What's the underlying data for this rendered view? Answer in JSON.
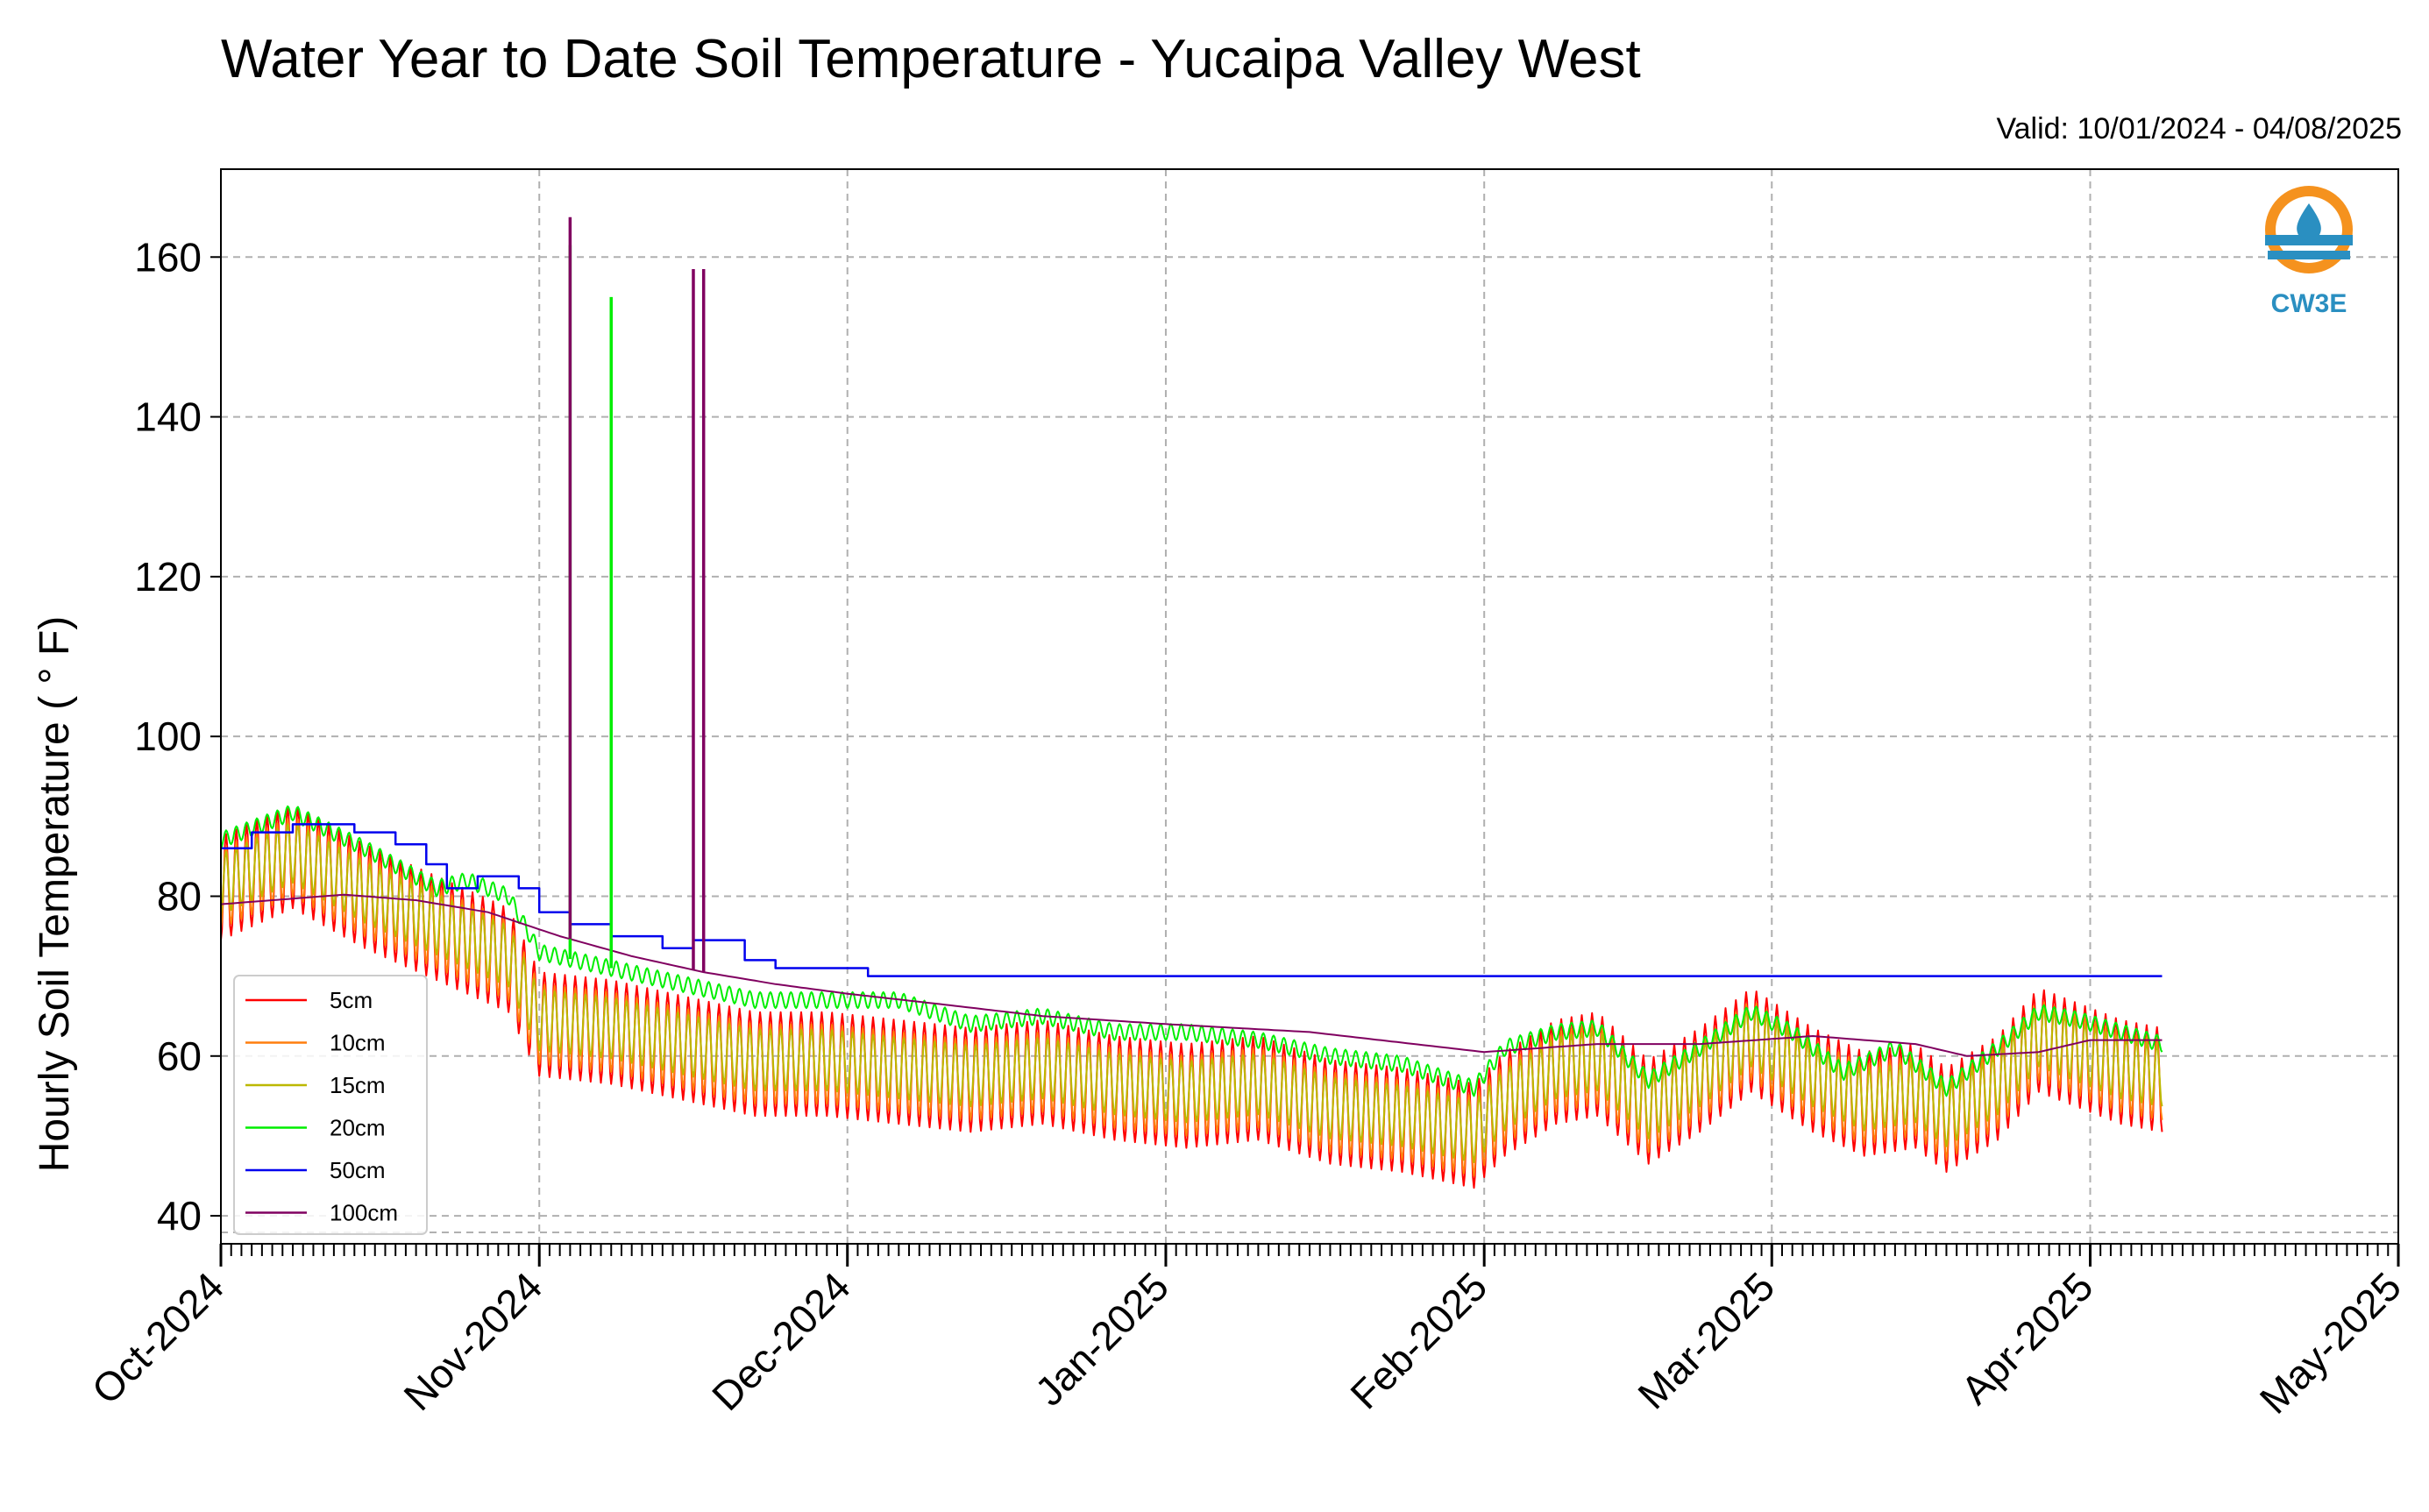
{
  "chart_data": {
    "type": "line",
    "title": "Water Year to Date Soil Temperature - Yucaipa Valley West",
    "subtitle": "Valid: 10/01/2024 - 04/08/2025",
    "ylabel": "Hourly Soil Temperature ( ° F)",
    "xlabel": "",
    "x_range": [
      "2024-10-01",
      "2025-05-01"
    ],
    "ylim": [
      36.5,
      171
    ],
    "y_ticks": [
      40,
      60,
      80,
      100,
      120,
      140,
      160
    ],
    "x_ticks": [
      {
        "date": "2024-10-01",
        "label": "Oct-2024"
      },
      {
        "date": "2024-11-01",
        "label": "Nov-2024"
      },
      {
        "date": "2024-12-01",
        "label": "Dec-2024"
      },
      {
        "date": "2025-01-01",
        "label": "Jan-2025"
      },
      {
        "date": "2025-02-01",
        "label": "Feb-2025"
      },
      {
        "date": "2025-03-01",
        "label": "Mar-2025"
      },
      {
        "date": "2025-04-01",
        "label": "Apr-2025"
      },
      {
        "date": "2025-05-01",
        "label": "May-2025"
      }
    ],
    "grid": true,
    "legend_position": "bottom-left",
    "data_end": "2025-04-08",
    "series": [
      {
        "name": "5cm",
        "color": "#ff0000",
        "diurnal_amplitude": 6.5,
        "daily_means": [
          [
            "2024-10-01",
            81
          ],
          [
            "2024-10-08",
            85
          ],
          [
            "2024-10-15",
            80
          ],
          [
            "2024-10-22",
            76
          ],
          [
            "2024-10-29",
            72
          ],
          [
            "2024-11-01",
            64
          ],
          [
            "2024-11-08",
            63
          ],
          [
            "2024-11-15",
            61
          ],
          [
            "2024-11-22",
            59
          ],
          [
            "2024-11-29",
            59
          ],
          [
            "2024-12-06",
            58
          ],
          [
            "2024-12-13",
            57
          ],
          [
            "2024-12-20",
            58
          ],
          [
            "2024-12-27",
            56
          ],
          [
            "2025-01-03",
            55
          ],
          [
            "2025-01-10",
            56
          ],
          [
            "2025-01-17",
            53
          ],
          [
            "2025-01-24",
            52
          ],
          [
            "2025-01-31",
            50
          ],
          [
            "2025-02-03",
            54
          ],
          [
            "2025-02-08",
            58
          ],
          [
            "2025-02-12",
            59
          ],
          [
            "2025-02-17",
            53
          ],
          [
            "2025-02-22",
            57
          ],
          [
            "2025-02-27",
            62
          ],
          [
            "2025-03-05",
            57
          ],
          [
            "2025-03-10",
            54
          ],
          [
            "2025-03-15",
            55
          ],
          [
            "2025-03-18",
            52
          ],
          [
            "2025-03-23",
            56
          ],
          [
            "2025-03-27",
            62
          ],
          [
            "2025-03-31",
            60
          ],
          [
            "2025-04-04",
            58
          ],
          [
            "2025-04-08",
            57
          ]
        ]
      },
      {
        "name": "10cm",
        "color": "#ff7f0e",
        "diurnal_amplitude": 5.0,
        "daily_means": [
          [
            "2024-10-01",
            81
          ],
          [
            "2024-10-08",
            85
          ],
          [
            "2024-10-15",
            80
          ],
          [
            "2024-10-22",
            76
          ],
          [
            "2024-10-29",
            72
          ],
          [
            "2024-11-01",
            64
          ],
          [
            "2024-11-08",
            63
          ],
          [
            "2024-11-15",
            61
          ],
          [
            "2024-11-22",
            59
          ],
          [
            "2024-11-29",
            59
          ],
          [
            "2024-12-06",
            58
          ],
          [
            "2024-12-13",
            57
          ],
          [
            "2024-12-20",
            58
          ],
          [
            "2024-12-27",
            56
          ],
          [
            "2025-01-03",
            55
          ],
          [
            "2025-01-10",
            56
          ],
          [
            "2025-01-17",
            53
          ],
          [
            "2025-01-24",
            52
          ],
          [
            "2025-01-31",
            50
          ],
          [
            "2025-02-03",
            54
          ],
          [
            "2025-02-08",
            58
          ],
          [
            "2025-02-12",
            59
          ],
          [
            "2025-02-17",
            53
          ],
          [
            "2025-02-22",
            57
          ],
          [
            "2025-02-27",
            62
          ],
          [
            "2025-03-05",
            57
          ],
          [
            "2025-03-10",
            54
          ],
          [
            "2025-03-15",
            55
          ],
          [
            "2025-03-18",
            52
          ],
          [
            "2025-03-23",
            56
          ],
          [
            "2025-03-27",
            62
          ],
          [
            "2025-03-31",
            60
          ],
          [
            "2025-04-04",
            58
          ],
          [
            "2025-04-08",
            57
          ]
        ]
      },
      {
        "name": "15cm",
        "color": "#bcb800",
        "diurnal_amplitude": 3.8,
        "daily_means": [
          [
            "2024-10-01",
            81.5
          ],
          [
            "2024-10-08",
            85.5
          ],
          [
            "2024-10-15",
            80.5
          ],
          [
            "2024-10-22",
            76.5
          ],
          [
            "2024-10-29",
            72.5
          ],
          [
            "2024-11-01",
            64.5
          ],
          [
            "2024-11-08",
            63.5
          ],
          [
            "2024-11-15",
            61.5
          ],
          [
            "2024-11-22",
            59.5
          ],
          [
            "2024-11-29",
            59.5
          ],
          [
            "2024-12-06",
            58.5
          ],
          [
            "2024-12-13",
            57.5
          ],
          [
            "2024-12-20",
            58.5
          ],
          [
            "2024-12-27",
            56.5
          ],
          [
            "2025-01-03",
            55.5
          ],
          [
            "2025-01-10",
            56.5
          ],
          [
            "2025-01-17",
            53.5
          ],
          [
            "2025-01-24",
            52.5
          ],
          [
            "2025-01-31",
            50.5
          ],
          [
            "2025-02-03",
            54.5
          ],
          [
            "2025-02-08",
            58.5
          ],
          [
            "2025-02-12",
            59.5
          ],
          [
            "2025-02-17",
            53.5
          ],
          [
            "2025-02-22",
            57.5
          ],
          [
            "2025-02-27",
            62.5
          ],
          [
            "2025-03-05",
            57.5
          ],
          [
            "2025-03-10",
            54.5
          ],
          [
            "2025-03-15",
            55.5
          ],
          [
            "2025-03-18",
            52.5
          ],
          [
            "2025-03-23",
            56.5
          ],
          [
            "2025-03-27",
            62.5
          ],
          [
            "2025-03-31",
            60.5
          ],
          [
            "2025-04-04",
            58.5
          ],
          [
            "2025-04-08",
            57.5
          ]
        ]
      },
      {
        "name": "20cm",
        "color": "#00ee00",
        "diurnal_amplitude": 1.0,
        "daily_means": [
          [
            "2024-10-01",
            87
          ],
          [
            "2024-10-08",
            90.5
          ],
          [
            "2024-10-15",
            86
          ],
          [
            "2024-10-22",
            81
          ],
          [
            "2024-10-25",
            82
          ],
          [
            "2024-10-29",
            80
          ],
          [
            "2024-11-01",
            73
          ],
          [
            "2024-11-08",
            71
          ],
          [
            "2024-11-15",
            69
          ],
          [
            "2024-11-22",
            67
          ],
          [
            "2024-11-29",
            67
          ],
          [
            "2024-12-06",
            67
          ],
          [
            "2024-12-13",
            64
          ],
          [
            "2024-12-20",
            65
          ],
          [
            "2024-12-27",
            63
          ],
          [
            "2025-01-03",
            63
          ],
          [
            "2025-01-10",
            62
          ],
          [
            "2025-01-17",
            60
          ],
          [
            "2025-01-24",
            59
          ],
          [
            "2025-01-31",
            56
          ],
          [
            "2025-02-03",
            61
          ],
          [
            "2025-02-08",
            63
          ],
          [
            "2025-02-12",
            63.5
          ],
          [
            "2025-02-17",
            57
          ],
          [
            "2025-02-22",
            61
          ],
          [
            "2025-02-27",
            65.5
          ],
          [
            "2025-03-03",
            63
          ],
          [
            "2025-03-08",
            58
          ],
          [
            "2025-03-13",
            61
          ],
          [
            "2025-03-18",
            56
          ],
          [
            "2025-03-23",
            61
          ],
          [
            "2025-03-27",
            65.5
          ],
          [
            "2025-03-31",
            64.5
          ],
          [
            "2025-04-04",
            63
          ],
          [
            "2025-04-08",
            61.5
          ]
        ]
      },
      {
        "name": "50cm",
        "color": "#0000ee",
        "step": true,
        "daily_means": [
          [
            "2024-10-01",
            86
          ],
          [
            "2024-10-04",
            88
          ],
          [
            "2024-10-08",
            89
          ],
          [
            "2024-10-14",
            88
          ],
          [
            "2024-10-18",
            86.5
          ],
          [
            "2024-10-21",
            84
          ],
          [
            "2024-10-23",
            81
          ],
          [
            "2024-10-26",
            82.5
          ],
          [
            "2024-10-30",
            81
          ],
          [
            "2024-11-01",
            78
          ],
          [
            "2024-11-04",
            76.5
          ],
          [
            "2024-11-08",
            75
          ],
          [
            "2024-11-13",
            73.5
          ],
          [
            "2024-11-16",
            74.5
          ],
          [
            "2024-11-21",
            72
          ],
          [
            "2024-11-24",
            71
          ],
          [
            "2024-12-03",
            70
          ],
          [
            "2025-04-08",
            70
          ]
        ]
      },
      {
        "name": "100cm",
        "color": "#800060",
        "daily_means": [
          [
            "2024-10-01",
            79
          ],
          [
            "2024-10-06",
            79.5
          ],
          [
            "2024-10-13",
            80.2
          ],
          [
            "2024-10-20",
            79.5
          ],
          [
            "2024-10-27",
            78
          ],
          [
            "2024-11-03",
            75
          ],
          [
            "2024-11-10",
            72.5
          ],
          [
            "2024-11-17",
            70.5
          ],
          [
            "2024-11-24",
            69
          ],
          [
            "2024-12-01",
            67.8
          ],
          [
            "2024-12-10",
            66.5
          ],
          [
            "2024-12-20",
            65
          ],
          [
            "2025-01-01",
            64
          ],
          [
            "2025-01-15",
            63
          ],
          [
            "2025-02-01",
            60.5
          ],
          [
            "2025-02-12",
            61.5
          ],
          [
            "2025-02-22",
            61.5
          ],
          [
            "2025-03-05",
            62.5
          ],
          [
            "2025-03-15",
            61.5
          ],
          [
            "2025-03-20",
            60
          ],
          [
            "2025-03-27",
            60.5
          ],
          [
            "2025-04-01",
            62
          ],
          [
            "2025-04-08",
            62
          ]
        ]
      }
    ],
    "spikes": [
      {
        "series": "20cm",
        "date": "2024-11-04",
        "value": 161.5
      },
      {
        "series": "100cm",
        "date": "2024-11-04",
        "value": 165
      },
      {
        "series": "20cm",
        "date": "2024-11-08",
        "value": 155
      },
      {
        "series": "100cm",
        "date": "2024-11-16",
        "value": 158.5
      },
      {
        "series": "100cm",
        "date": "2024-11-17",
        "value": 158.5
      }
    ]
  },
  "logo": {
    "text": "CW3E",
    "colors": [
      "#f5921e",
      "#2a8fc1"
    ]
  }
}
